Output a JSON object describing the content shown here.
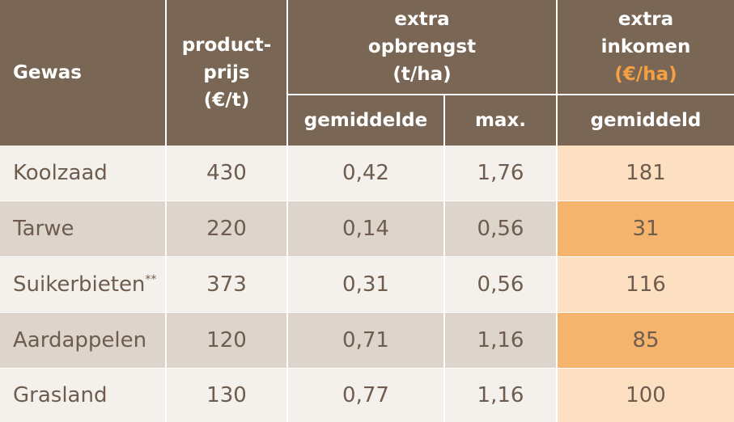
{
  "header": {
    "gewas": "Gewas",
    "productprijs": [
      "product-",
      "prijs",
      "(€/t)"
    ],
    "extra_opbrengst": [
      "extra",
      "opbrengst",
      "(t/ha)"
    ],
    "extra_inkomen": [
      "extra",
      "inkomen",
      "(€/ha)"
    ],
    "gemiddelde": "gemiddelde",
    "max": "max.",
    "gemiddeld": "gemiddeld"
  },
  "table": {
    "rows": [
      [
        "Koolzaad",
        "430",
        "0,42",
        "1,76",
        "181"
      ],
      [
        "Tarwe",
        "220",
        "0,14",
        "0,56",
        "31"
      ],
      [
        {
          "text": "Suikerbieten",
          "mark": "**"
        },
        "373",
        "0,31",
        "0,56",
        "116"
      ],
      [
        "Aardappelen",
        "120",
        "0,71",
        "1,16",
        "85"
      ],
      [
        "Grasland",
        "130",
        "0,77",
        "1,16",
        "100"
      ]
    ]
  }
}
